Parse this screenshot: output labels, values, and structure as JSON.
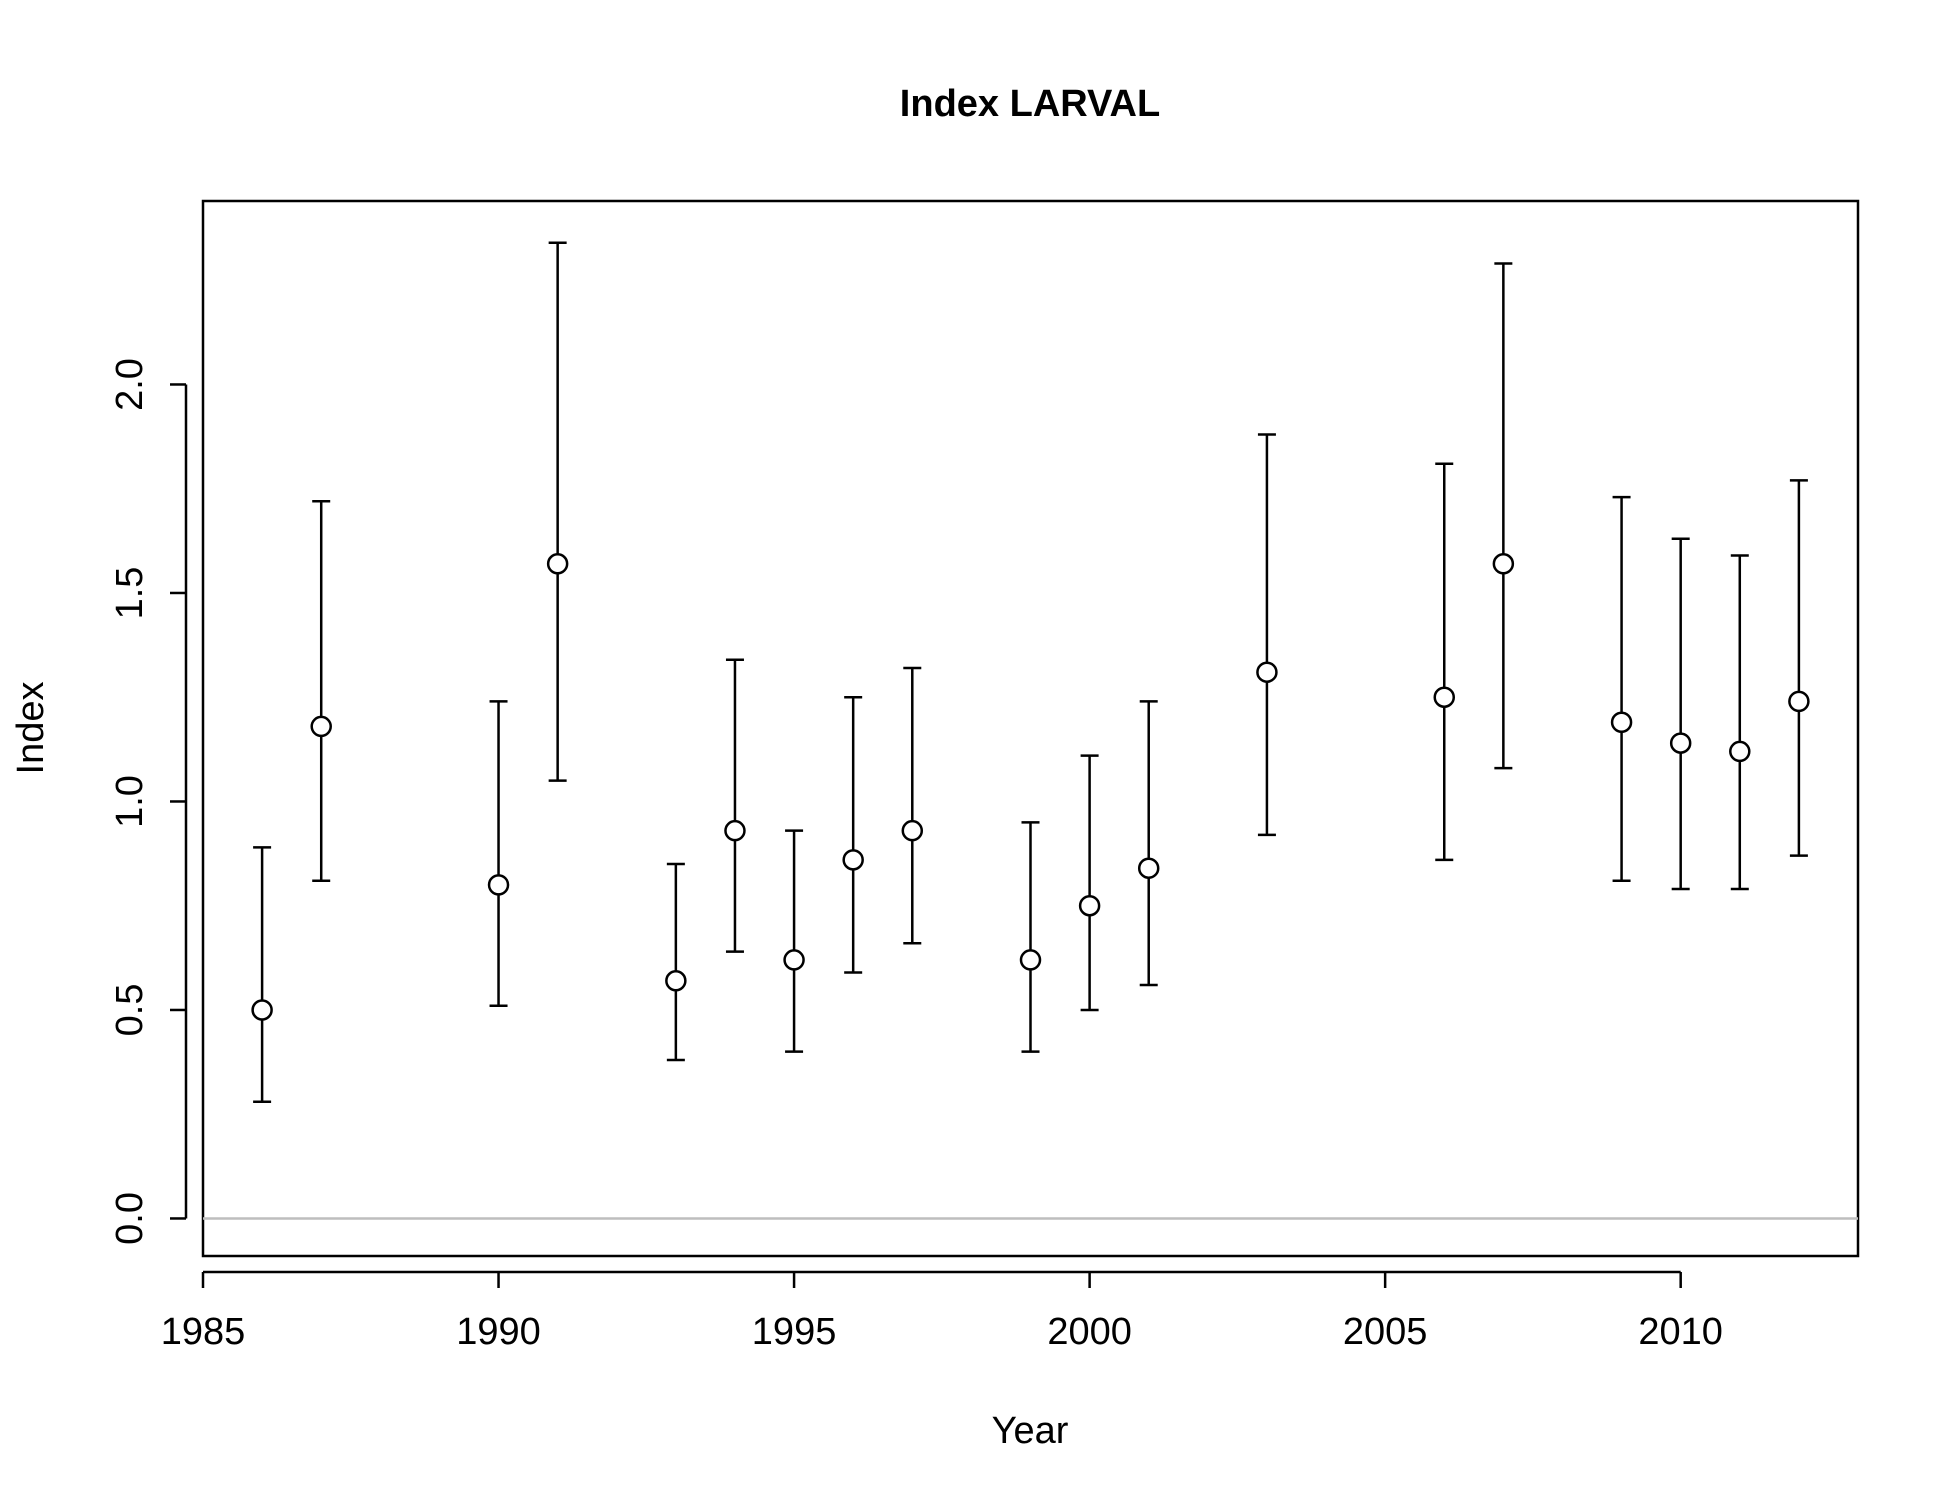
{
  "chart_data": {
    "type": "scatter",
    "title": "Index LARVAL",
    "xlabel": "Year",
    "ylabel": "Index",
    "xlim": [
      1985,
      2013
    ],
    "ylim": [
      -0.09,
      2.44
    ],
    "x_ticks": [
      1985,
      1990,
      1995,
      2000,
      2005,
      2010
    ],
    "y_ticks": [
      "0.0",
      "0.5",
      "1.0",
      "1.5",
      "2.0"
    ],
    "grid": false,
    "reference_line": {
      "y": 0,
      "color": "#bebebe"
    },
    "points": [
      {
        "year": 1986,
        "value": 0.5,
        "lower": 0.28,
        "upper": 0.89
      },
      {
        "year": 1987,
        "value": 1.18,
        "lower": 0.81,
        "upper": 1.72
      },
      {
        "year": 1990,
        "value": 0.8,
        "lower": 0.51,
        "upper": 1.24
      },
      {
        "year": 1991,
        "value": 1.57,
        "lower": 1.05,
        "upper": 2.34
      },
      {
        "year": 1993,
        "value": 0.57,
        "lower": 0.38,
        "upper": 0.85
      },
      {
        "year": 1994,
        "value": 0.93,
        "lower": 0.64,
        "upper": 1.34
      },
      {
        "year": 1995,
        "value": 0.62,
        "lower": 0.4,
        "upper": 0.93
      },
      {
        "year": 1996,
        "value": 0.86,
        "lower": 0.59,
        "upper": 1.25
      },
      {
        "year": 1997,
        "value": 0.93,
        "lower": 0.66,
        "upper": 1.32
      },
      {
        "year": 1999,
        "value": 0.62,
        "lower": 0.4,
        "upper": 0.95
      },
      {
        "year": 2000,
        "value": 0.75,
        "lower": 0.5,
        "upper": 1.11
      },
      {
        "year": 2001,
        "value": 0.84,
        "lower": 0.56,
        "upper": 1.24
      },
      {
        "year": 2003,
        "value": 1.31,
        "lower": 0.92,
        "upper": 1.88
      },
      {
        "year": 2006,
        "value": 1.25,
        "lower": 0.86,
        "upper": 1.81
      },
      {
        "year": 2007,
        "value": 1.57,
        "lower": 1.08,
        "upper": 2.29
      },
      {
        "year": 2009,
        "value": 1.19,
        "lower": 0.81,
        "upper": 1.73
      },
      {
        "year": 2010,
        "value": 1.14,
        "lower": 0.79,
        "upper": 1.63
      },
      {
        "year": 2011,
        "value": 1.12,
        "lower": 0.79,
        "upper": 1.59
      },
      {
        "year": 2012,
        "value": 1.24,
        "lower": 0.87,
        "upper": 1.77
      }
    ]
  }
}
